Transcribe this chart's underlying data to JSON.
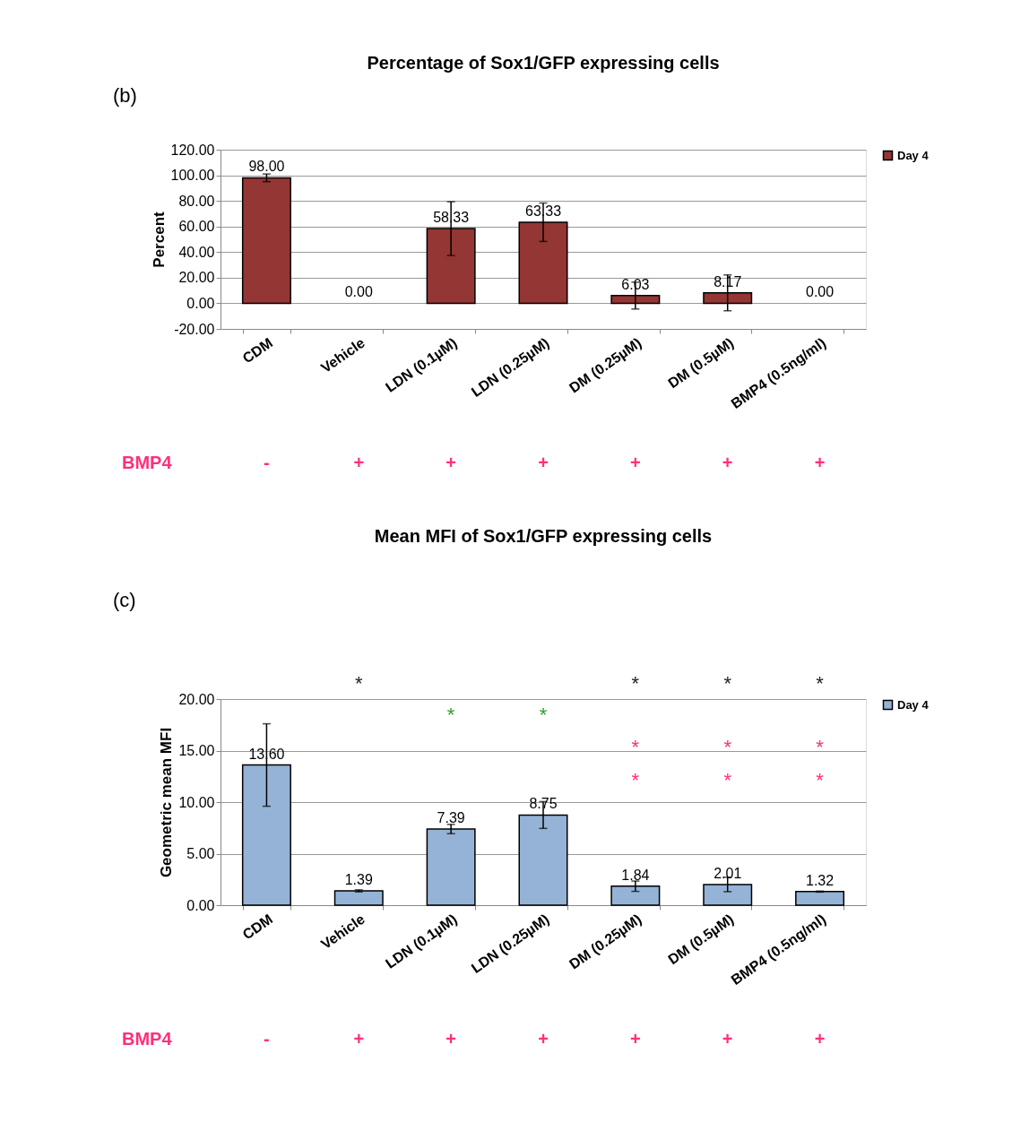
{
  "chart_data": [
    {
      "type": "bar",
      "title": "Percentage of Sox1/GFP expressing cells",
      "ylabel": "Percent",
      "categories": [
        "CDM",
        "Vehicle",
        "LDN (0.1µM)",
        "LDN (0.25µM)",
        "DM (0.25µM)",
        "DM (0.5µM)",
        "BMP4 (0.5ng/ml)"
      ],
      "series": [
        {
          "name": "Day 4",
          "color": "#943634",
          "values": [
            98.0,
            0.0,
            58.33,
            63.33,
            6.03,
            8.17,
            0.0
          ],
          "errors": [
            3,
            null,
            21,
            15,
            10.5,
            14,
            null
          ],
          "value_labels": [
            "98.00",
            "0.00",
            "58.33",
            "63.33",
            "6.03",
            "8.17",
            "0.00"
          ]
        }
      ],
      "ylim": [
        -20,
        120
      ],
      "yticks": [
        {
          "value": -20,
          "label": "-20.00"
        },
        {
          "value": 0,
          "label": "0.00"
        },
        {
          "value": 20,
          "label": "20.00"
        },
        {
          "value": 40,
          "label": "40.00"
        },
        {
          "value": 60,
          "label": "60.00"
        },
        {
          "value": 80,
          "label": "80.00"
        },
        {
          "value": 100,
          "label": "100.00"
        },
        {
          "value": 120,
          "label": "120.00"
        }
      ],
      "grid": "y",
      "legend": "right",
      "annotations": [
        "(b)",
        "BMP4",
        "-",
        "+",
        "+",
        "+",
        "+",
        "+",
        "+"
      ]
    },
    {
      "type": "bar",
      "title": "Mean MFI of Sox1/GFP expressing cells",
      "ylabel": "Geometric mean MFI",
      "categories": [
        "CDM",
        "Vehicle",
        "LDN (0.1µM)",
        "LDN (0.25µM)",
        "DM (0.25µM)",
        "DM (0.5µM)",
        "BMP4 (0.5ng/ml)"
      ],
      "series": [
        {
          "name": "Day 4",
          "color": "#95b3d7",
          "values": [
            13.6,
            1.39,
            7.39,
            8.75,
            1.84,
            2.01,
            1.32
          ],
          "errors": [
            4,
            0.1,
            0.45,
            1.3,
            0.5,
            0.7,
            0.05
          ],
          "value_labels": [
            "13.60",
            "1.39",
            "7.39",
            "8.75",
            "1.84",
            "2.01",
            "1.32"
          ]
        }
      ],
      "ylim": [
        0,
        20
      ],
      "yticks": [
        {
          "value": 0,
          "label": "0.00"
        },
        {
          "value": 5,
          "label": "5.00"
        },
        {
          "value": 10,
          "label": "10.00"
        },
        {
          "value": 15,
          "label": "15.00"
        },
        {
          "value": 20,
          "label": "20.00"
        }
      ],
      "grid": "y",
      "legend": "right",
      "annotations": [
        "(c)",
        "BMP4",
        "-",
        "+",
        "+",
        "+",
        "+",
        "+",
        "+",
        "*",
        "*",
        "*",
        "*",
        "*",
        "*",
        "*",
        "*",
        "*",
        "*",
        "*",
        "*"
      ]
    }
  ]
}
